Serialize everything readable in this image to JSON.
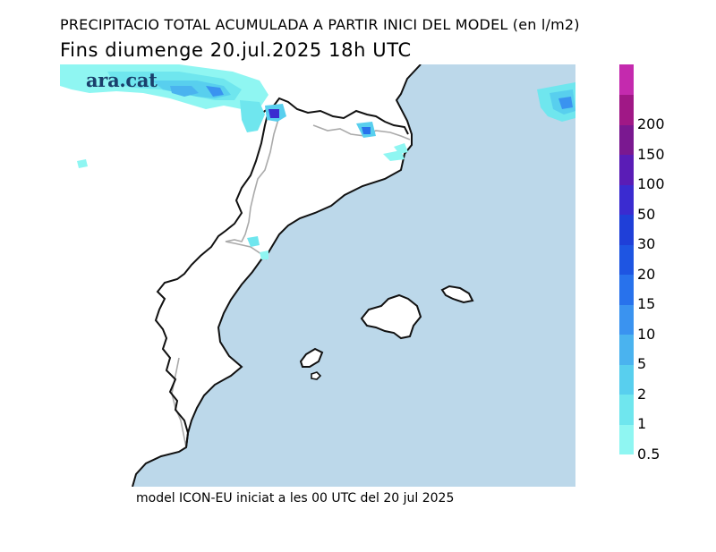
{
  "header": {
    "title": "PRECIPITACIO TOTAL ACUMULADA A PARTIR INICI DEL MODEL (en l/m2)",
    "subtitle": "Fins diumenge 20.jul.2025 18h UTC"
  },
  "logo": {
    "text": "ara.cat"
  },
  "footer": {
    "text": "model ICON-EU iniciat a les 00 UTC del 20 jul 2025"
  },
  "map": {
    "sea_color": "#bcd8ea",
    "land_color": "#ffffff",
    "coastline_color": "#111111",
    "border_color": "#aaaaaa"
  },
  "legend": {
    "unit": "l/m2",
    "levels": [
      {
        "label": "0.5",
        "color": "#8ff6f2"
      },
      {
        "label": "1",
        "color": "#6fe6ee"
      },
      {
        "label": "2",
        "color": "#58cfee"
      },
      {
        "label": "5",
        "color": "#4ab3ef"
      },
      {
        "label": "10",
        "color": "#3a93f0"
      },
      {
        "label": "15",
        "color": "#2872ec"
      },
      {
        "label": "20",
        "color": "#1e55e2"
      },
      {
        "label": "30",
        "color": "#1f3fd8"
      },
      {
        "label": "50",
        "color": "#3a2bd0"
      },
      {
        "label": "100",
        "color": "#5a1cb6"
      },
      {
        "label": "150",
        "color": "#7a1890"
      },
      {
        "label": "200",
        "color": "#a01886"
      },
      {
        "label": "",
        "color": "#c42aae"
      }
    ]
  }
}
